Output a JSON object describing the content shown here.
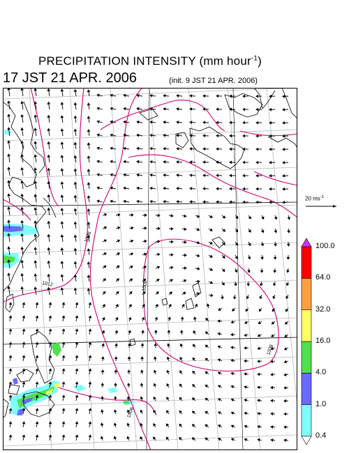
{
  "header": {
    "title": "PRECIPITATION INTENSITY (mm hour",
    "title_exponent": "-1",
    "title_close": ")",
    "valid_time": "17 JST 21 APR. 2006",
    "init_time": "(init. 9 JST 21 APR. 2006)"
  },
  "wind_scale": {
    "label": "20 ms",
    "exponent": "-1"
  },
  "isobar_labels": [
    "1008",
    "1012",
    "1008",
    "1008",
    "1008"
  ],
  "legend": {
    "levels": [
      "0.4",
      "1.0",
      "4.0",
      "16.0",
      "32.0",
      "64.0",
      "100.0"
    ],
    "colors": [
      "#80ffff",
      "#6a6aff",
      "#50e050",
      "#ffff66",
      "#ffa040",
      "#ff0000",
      "#cc33ff"
    ]
  },
  "colors": {
    "isobar": "#d4006a",
    "grid": "#b0b0b0",
    "coast": "#000000",
    "frame": "#000000"
  }
}
